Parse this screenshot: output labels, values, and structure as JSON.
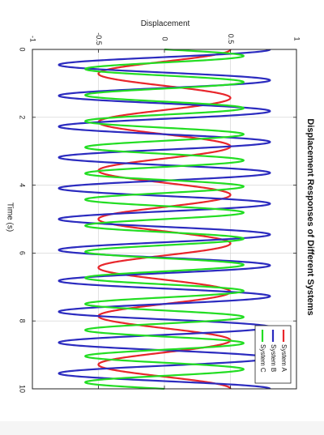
{
  "chart_data": {
    "type": "line",
    "title": "Displacement Responses of Different Systems",
    "xlabel": "Time (s)",
    "ylabel": "Displacement",
    "xlim": [
      0,
      10
    ],
    "ylim": [
      -1,
      1
    ],
    "xticks": [
      0,
      2,
      4,
      6,
      8,
      10
    ],
    "yticks": [
      -1,
      -0.5,
      0,
      0.5,
      1
    ],
    "ytick_labels": [
      "-1",
      "-0.5",
      "0",
      "0.5",
      "1"
    ],
    "grid": true,
    "legend_position": "bottom-right",
    "orientation": "rotated-90-clockwise",
    "series": [
      {
        "name": "System A",
        "color": "#e8262b",
        "amplitude": 0.5,
        "frequency_hz": 0.7,
        "phase": 1.5708
      },
      {
        "name": "System B",
        "color": "#2b2bbf",
        "amplitude": 0.8,
        "frequency_hz": 1.1,
        "phase": 1.5708
      },
      {
        "name": "System C",
        "color": "#22dd22",
        "amplitude": 0.6,
        "frequency_hz": 1.3,
        "phase": 0
      }
    ]
  }
}
